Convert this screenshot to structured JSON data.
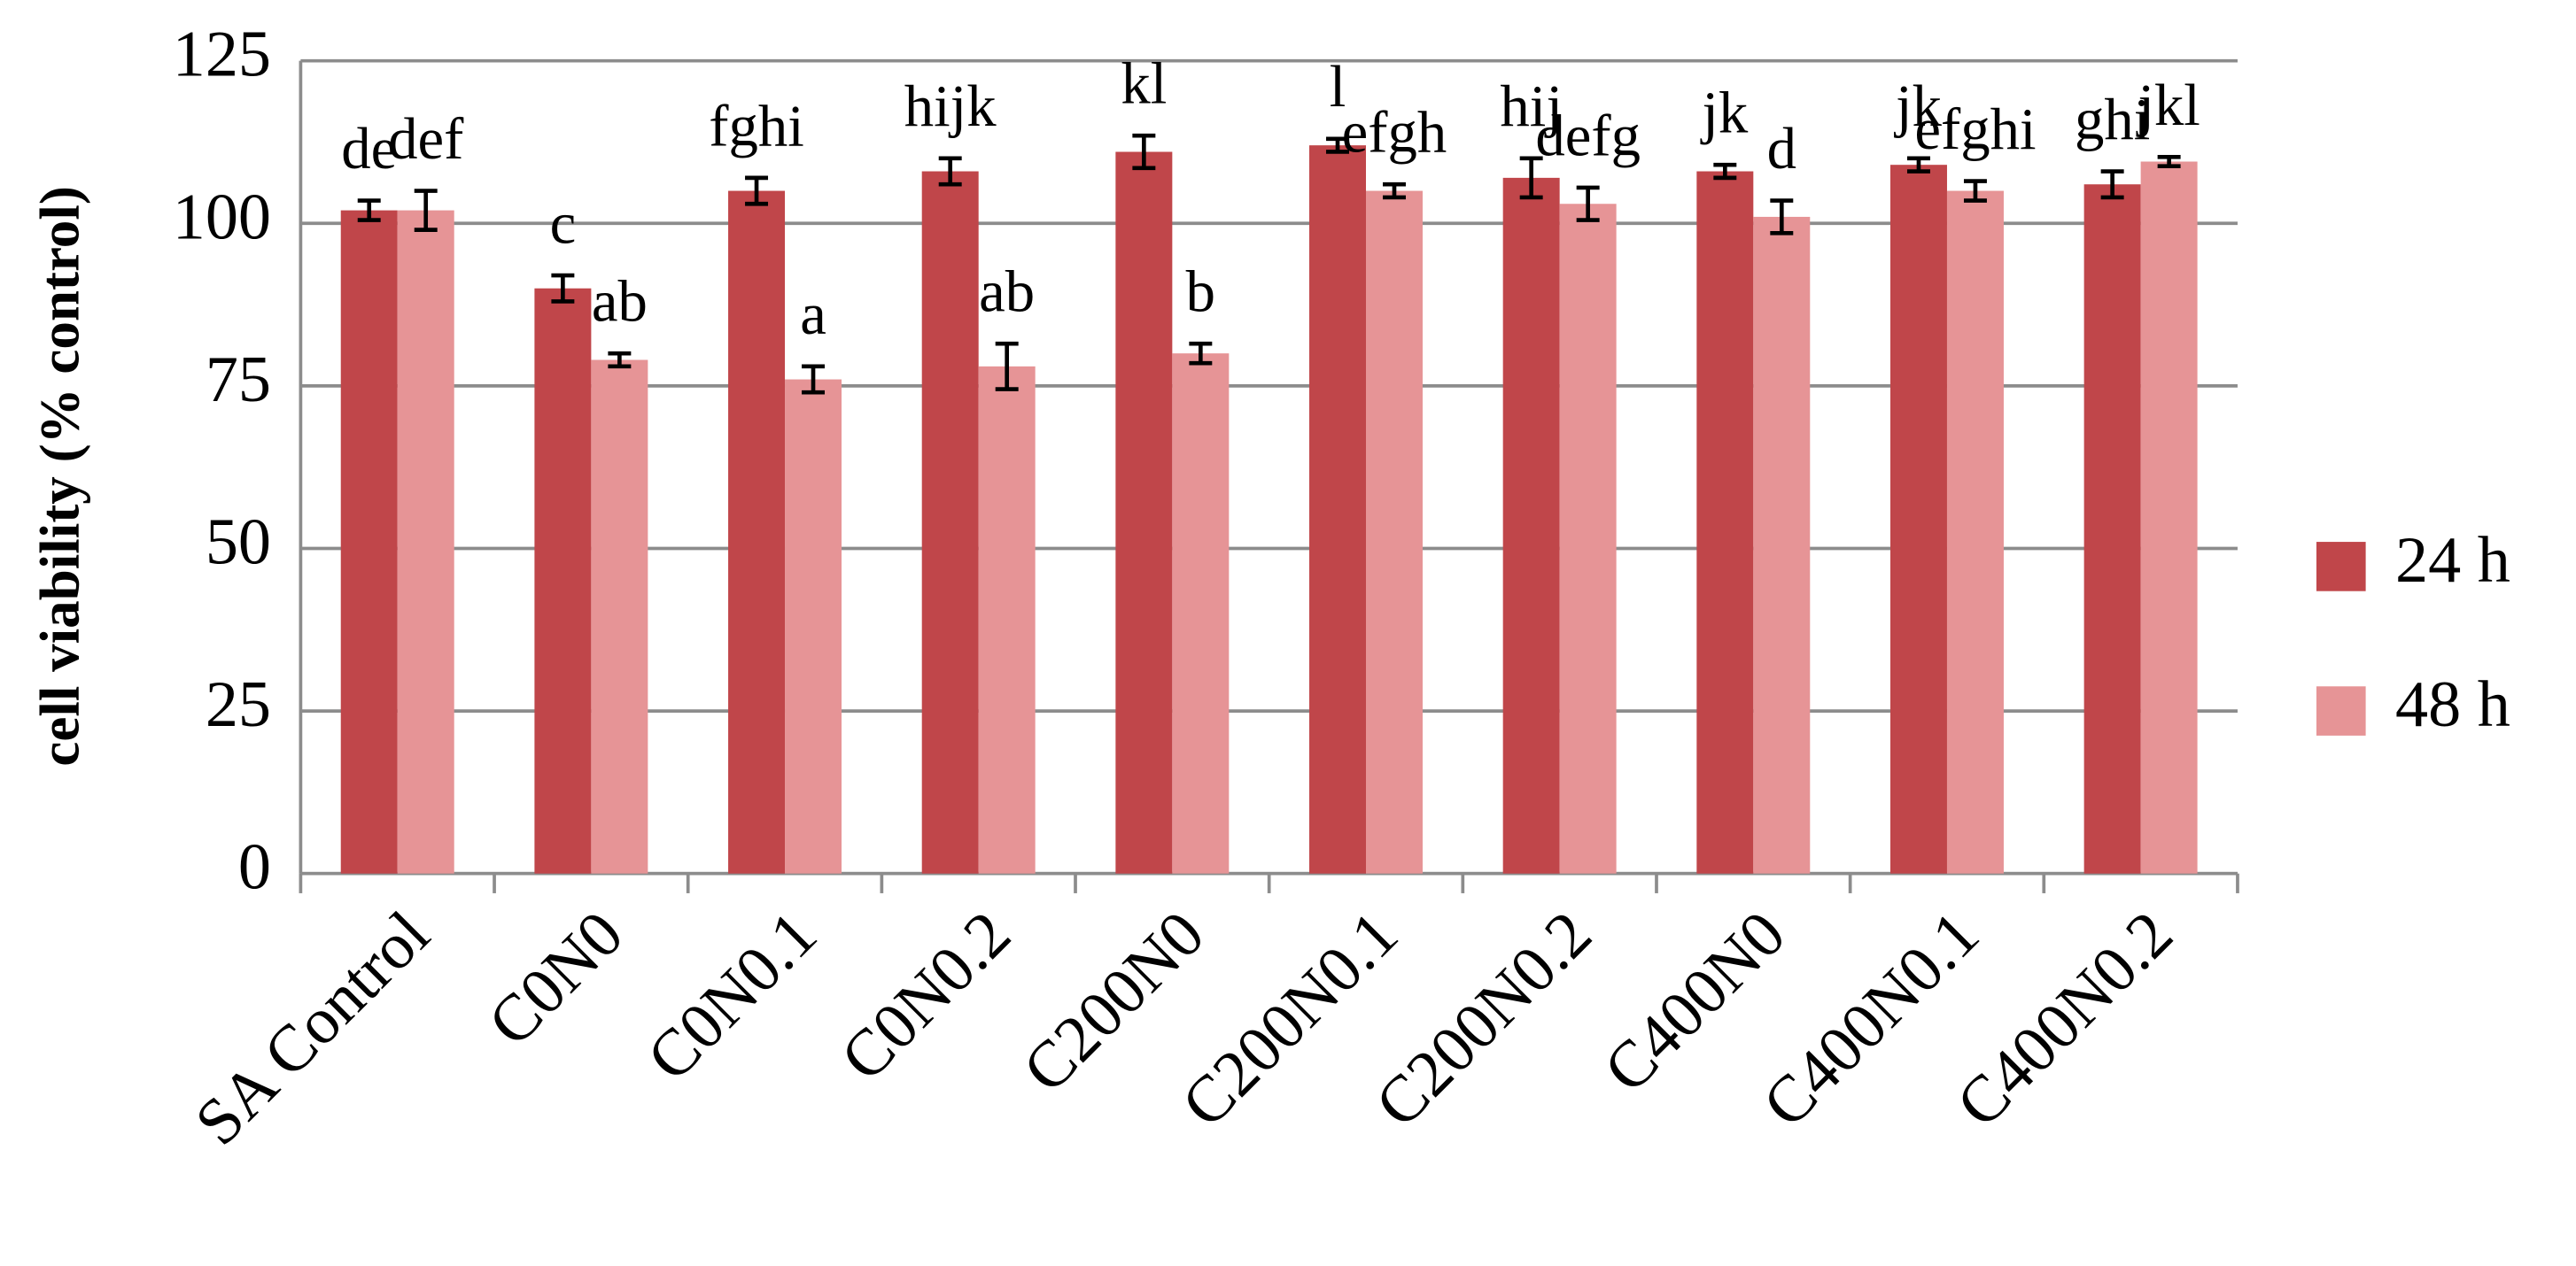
{
  "chart_data": {
    "type": "bar",
    "y_label": "cell viability (% control)",
    "categories": [
      "SA Control",
      "C0N0",
      "C0N0.1",
      "C0N0.2",
      "C200N0",
      "C200N0.1",
      "C200N0.2",
      "C400N0",
      "C400N0.1",
      "C400N0.2"
    ],
    "series": [
      {
        "name": "24 h",
        "color": "#c0464a",
        "values": [
          102,
          90,
          105,
          108,
          111,
          112,
          107,
          108,
          109,
          106
        ],
        "errors": [
          1.5,
          2,
          2,
          2,
          2.5,
          1,
          3,
          1,
          1,
          2
        ],
        "labels": [
          "de",
          "c",
          "fghi",
          "hijk",
          "kl",
          "l",
          "hij",
          "jk",
          "jk",
          "ghi"
        ]
      },
      {
        "name": "48 h",
        "color": "#e69496",
        "values": [
          102,
          79,
          76,
          78,
          80,
          105,
          103,
          101,
          105,
          109.5
        ],
        "errors": [
          3,
          1,
          2,
          3.5,
          1.5,
          1,
          2.5,
          2.5,
          1.5,
          0.7
        ],
        "labels": [
          "def",
          "ab",
          "a",
          "ab",
          "b",
          "efgh",
          "defg",
          "d",
          "efghi",
          "jkl"
        ]
      }
    ],
    "ylim": [
      0,
      125
    ],
    "yticks": [
      0,
      25,
      50,
      75,
      100,
      125
    ],
    "grid": true,
    "legend": "right"
  }
}
